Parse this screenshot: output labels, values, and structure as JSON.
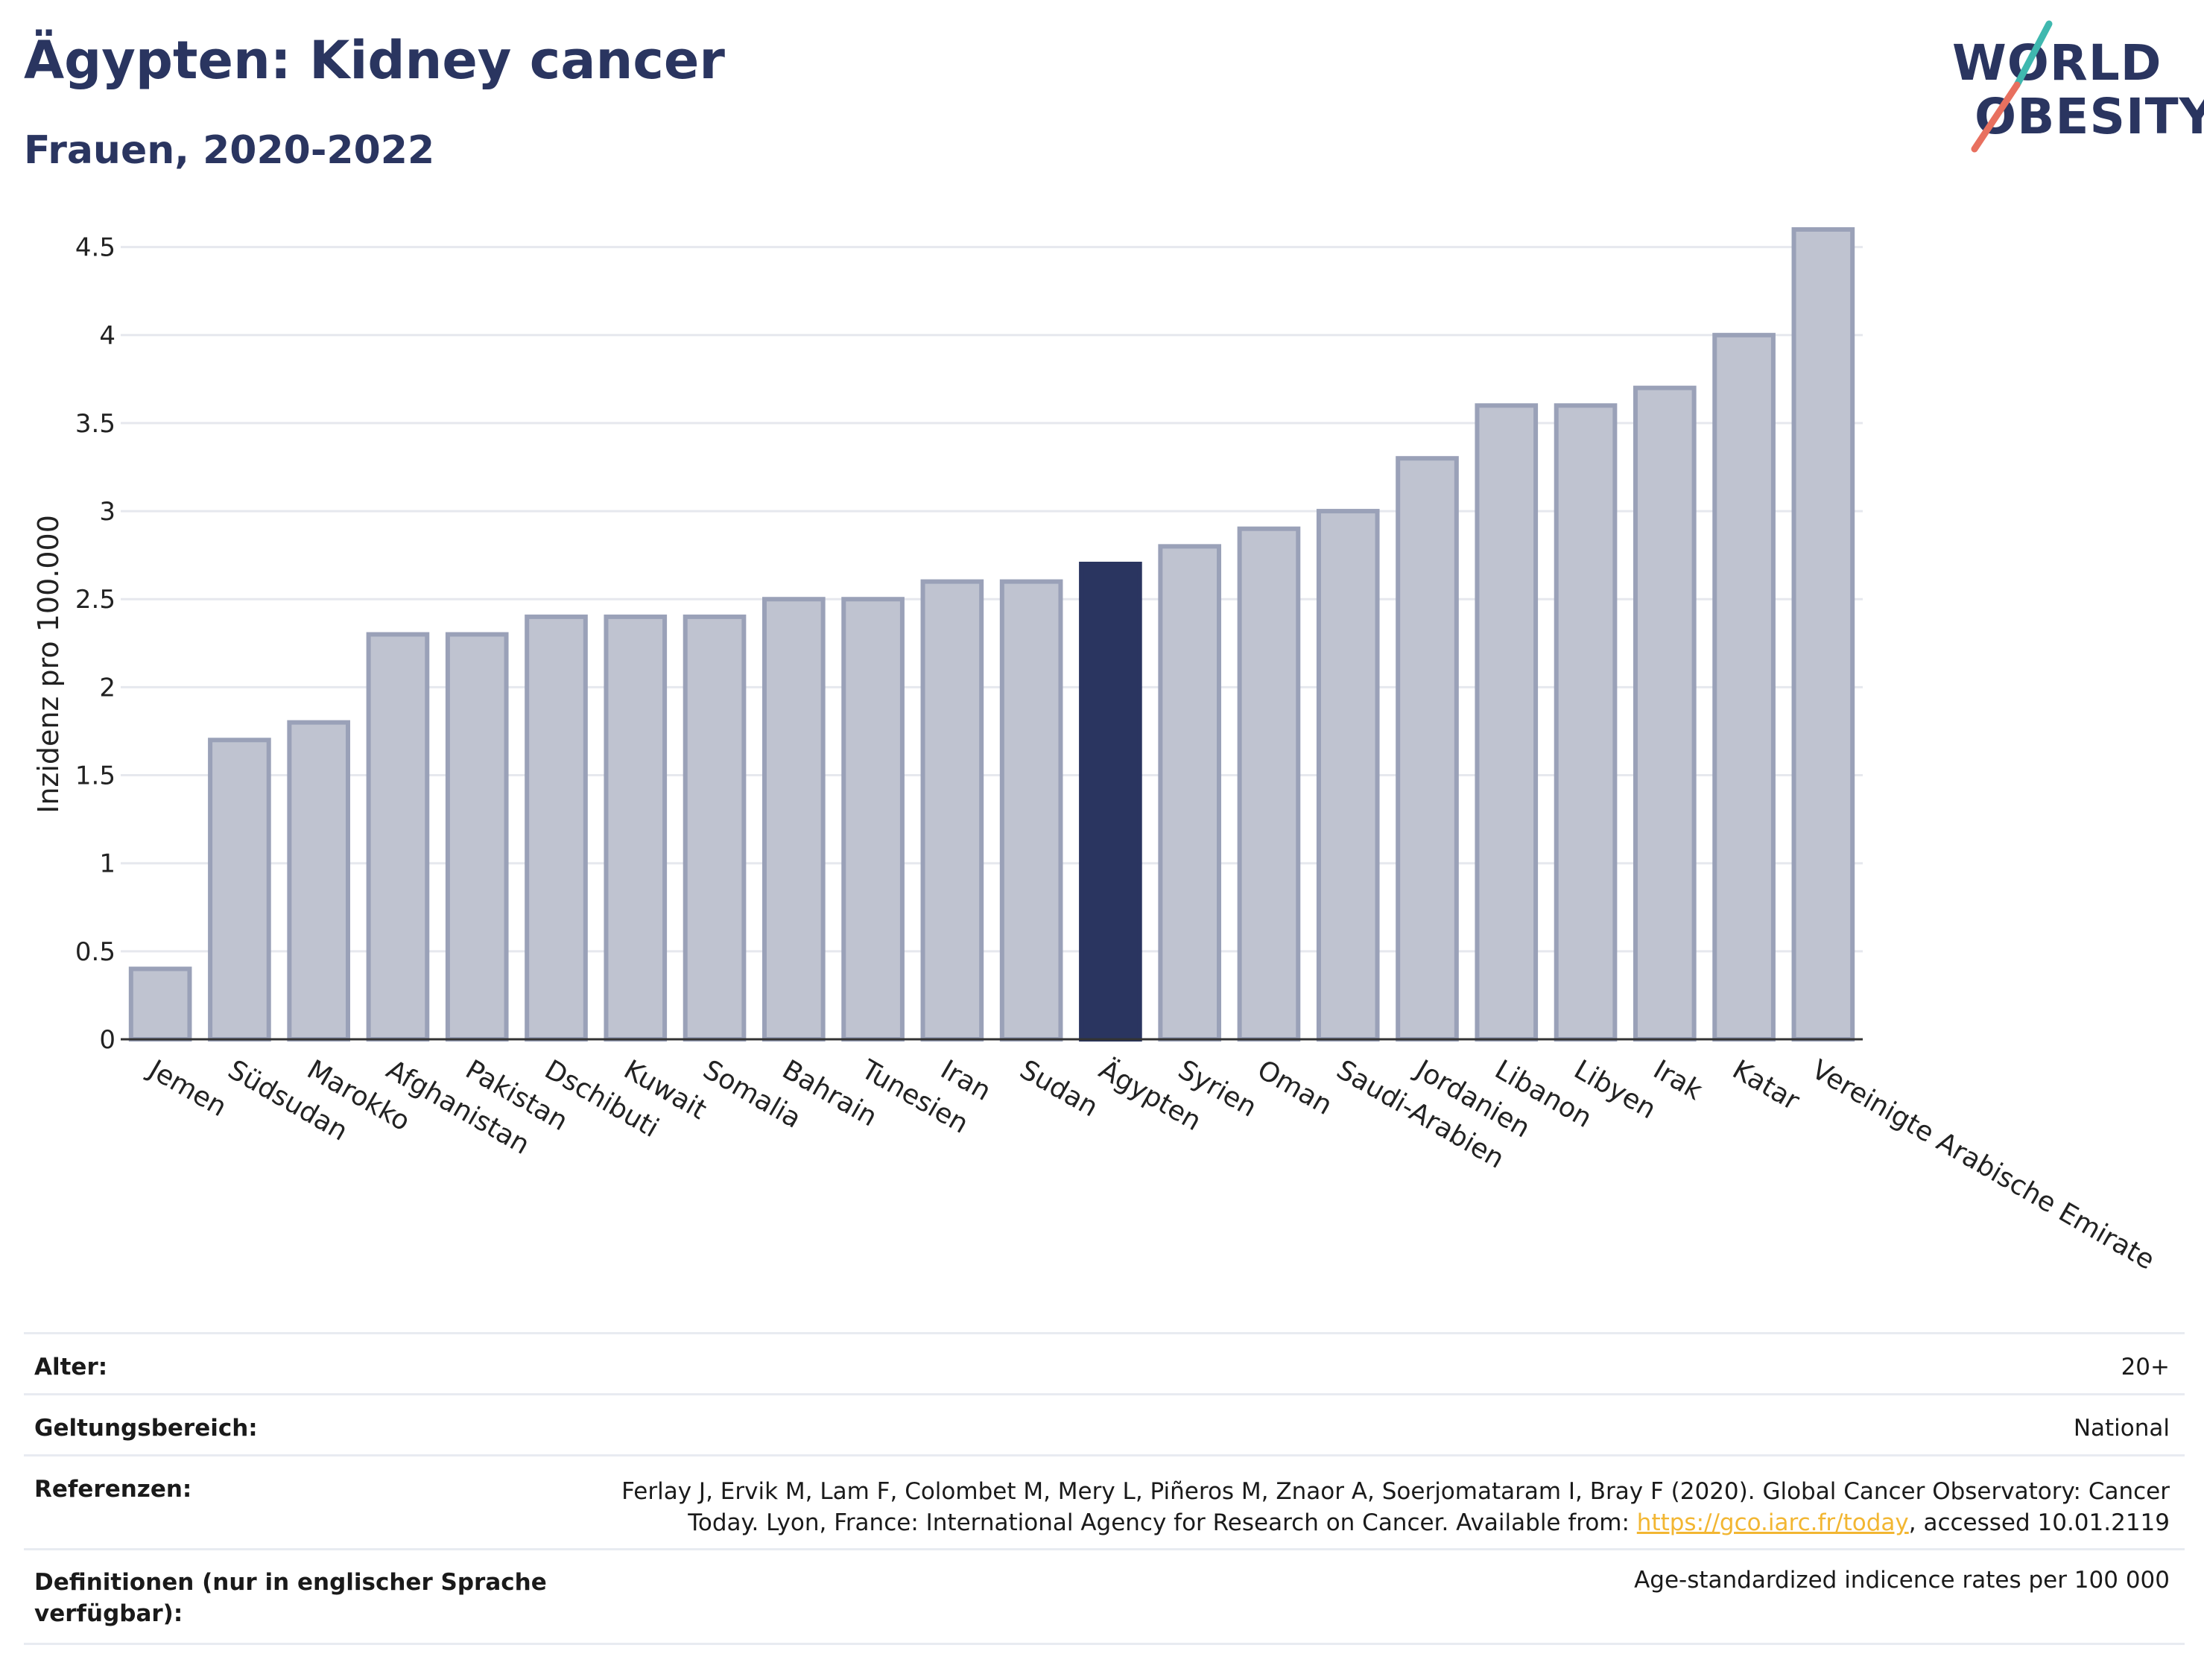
{
  "header": {
    "title": "Ägypten: Kidney cancer",
    "subtitle": "Frauen, 2020-2022"
  },
  "logo": {
    "line1": "WORLD",
    "line2": "OBESITY",
    "slash_colors": [
      "#3fb8af",
      "#e8705f"
    ]
  },
  "colors": {
    "bar": "#bfc3d0",
    "bar_border": "#9aa1b8",
    "highlight": "#2a3560",
    "grid": "#e6e8ee",
    "axis": "#333333",
    "link": "#f2b632"
  },
  "chart_data": {
    "type": "bar",
    "ylabel": "Inzidenz pro 100.000",
    "ylim": [
      0,
      4.6
    ],
    "yticks": [
      "0",
      "0.5",
      "1",
      "1.5",
      "2",
      "2.5",
      "3",
      "3.5",
      "4",
      "4.5"
    ],
    "categories": [
      "Jemen",
      "Südsudan",
      "Marokko",
      "Afghanistan",
      "Pakistan",
      "Dschibuti",
      "Kuwait",
      "Somalia",
      "Bahrain",
      "Tunesien",
      "Iran",
      "Sudan",
      "Ägypten",
      "Syrien",
      "Oman",
      "Saudi-Arabien",
      "Jordanien",
      "Libanon",
      "Libyen",
      "Irak",
      "Katar",
      "Vereinigte Arabische Emirate"
    ],
    "values": [
      0.4,
      1.7,
      1.8,
      2.3,
      2.3,
      2.4,
      2.4,
      2.4,
      2.5,
      2.5,
      2.6,
      2.6,
      2.7,
      2.8,
      2.9,
      3.0,
      3.3,
      3.6,
      3.6,
      3.7,
      4.0,
      4.6
    ],
    "highlight": "Ägypten",
    "grid": true
  },
  "metadata": {
    "rows": [
      {
        "label": "Alter:",
        "value": "20+"
      },
      {
        "label": "Geltungsbereich:",
        "value": "National"
      },
      {
        "label": "Referenzen:",
        "value_line1": "Ferlay J, Ervik M, Lam F, Colombet M, Mery L, Piñeros M, Znaor A, Soerjomataram I, Bray F (2020). Global Cancer Observatory: Cancer",
        "value_line2_pre": "Today. Lyon, France: International Agency for Research on Cancer. Available from: ",
        "link": "https://gco.iarc.fr/today",
        "value_line2_post": ", accessed 10.01.2119"
      },
      {
        "label_line1": "Definitionen (nur in englischer Sprache",
        "label_line2": "verfügbar):",
        "value": "Age-standardized indicence rates per 100 000"
      }
    ]
  }
}
